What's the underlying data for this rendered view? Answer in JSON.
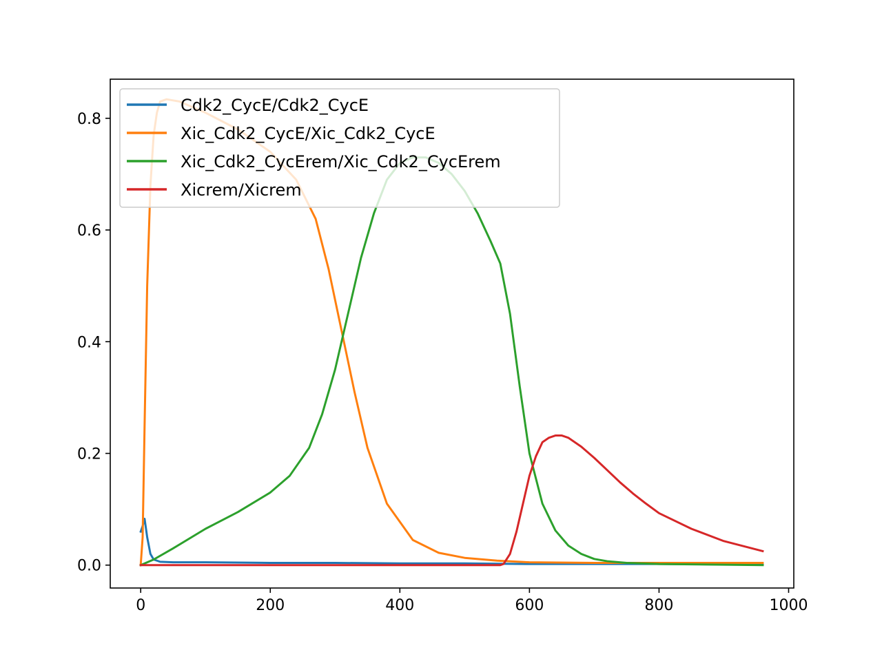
{
  "chart_data": {
    "type": "line",
    "title": "",
    "xlabel": "",
    "ylabel": "",
    "xlim": [
      -47,
      1008
    ],
    "ylim": [
      -0.041,
      0.87
    ],
    "xticks": [
      {
        "value": 0,
        "label": "0"
      },
      {
        "value": 200,
        "label": "200"
      },
      {
        "value": 400,
        "label": "400"
      },
      {
        "value": 600,
        "label": "600"
      },
      {
        "value": 800,
        "label": "800"
      },
      {
        "value": 1000,
        "label": "1000"
      }
    ],
    "yticks": [
      {
        "value": 0.0,
        "label": "0.0"
      },
      {
        "value": 0.2,
        "label": "0.2"
      },
      {
        "value": 0.4,
        "label": "0.4"
      },
      {
        "value": 0.6,
        "label": "0.6"
      },
      {
        "value": 0.8,
        "label": "0.8"
      }
    ],
    "grid": false,
    "legend": "upper-left",
    "series": [
      {
        "name": "Cdk2_CycE/Cdk2_CycE",
        "color": "#1f77b4",
        "x": [
          0,
          3,
          6,
          10,
          15,
          20,
          30,
          50,
          100,
          200,
          300,
          400,
          500,
          600,
          700,
          800,
          960
        ],
        "y": [
          0.06,
          0.07,
          0.083,
          0.05,
          0.02,
          0.01,
          0.006,
          0.005,
          0.005,
          0.004,
          0.004,
          0.003,
          0.003,
          0.002,
          0.002,
          0.002,
          0.001
        ]
      },
      {
        "name": "Xic_Cdk2_CycE/Xic_Cdk2_CycE",
        "color": "#ff7f0e",
        "x": [
          0,
          3,
          6,
          10,
          15,
          20,
          25,
          30,
          40,
          60,
          100,
          150,
          200,
          240,
          270,
          290,
          310,
          330,
          350,
          380,
          420,
          460,
          500,
          550,
          600,
          700,
          800,
          960
        ],
        "y": [
          0.0,
          0.05,
          0.25,
          0.5,
          0.68,
          0.77,
          0.81,
          0.83,
          0.834,
          0.83,
          0.81,
          0.78,
          0.74,
          0.69,
          0.62,
          0.53,
          0.42,
          0.31,
          0.21,
          0.11,
          0.045,
          0.022,
          0.013,
          0.008,
          0.005,
          0.004,
          0.004,
          0.004
        ]
      },
      {
        "name": "Xic_Cdk2_CycErem/Xic_Cdk2_CycErem",
        "color": "#2ca02c",
        "x": [
          0,
          20,
          50,
          100,
          150,
          200,
          230,
          260,
          280,
          300,
          320,
          340,
          360,
          380,
          400,
          420,
          440,
          460,
          480,
          500,
          520,
          540,
          555,
          570,
          585,
          600,
          620,
          640,
          660,
          680,
          700,
          720,
          750,
          800,
          960
        ],
        "y": [
          0.0,
          0.01,
          0.03,
          0.065,
          0.095,
          0.13,
          0.16,
          0.21,
          0.27,
          0.35,
          0.45,
          0.55,
          0.63,
          0.69,
          0.72,
          0.73,
          0.73,
          0.72,
          0.7,
          0.67,
          0.63,
          0.58,
          0.54,
          0.45,
          0.32,
          0.2,
          0.11,
          0.062,
          0.035,
          0.02,
          0.011,
          0.007,
          0.004,
          0.002,
          0.0
        ]
      },
      {
        "name": "Xicrem/Xicrem",
        "color": "#d62728",
        "x": [
          0,
          300,
          500,
          555,
          560,
          570,
          580,
          590,
          600,
          610,
          620,
          630,
          640,
          650,
          660,
          680,
          700,
          720,
          740,
          760,
          780,
          800,
          850,
          900,
          960
        ],
        "y": [
          0.0,
          0.0,
          0.0,
          0.0,
          0.002,
          0.02,
          0.06,
          0.11,
          0.16,
          0.195,
          0.22,
          0.228,
          0.232,
          0.232,
          0.228,
          0.212,
          0.192,
          0.17,
          0.148,
          0.128,
          0.11,
          0.093,
          0.065,
          0.043,
          0.025
        ]
      }
    ]
  }
}
